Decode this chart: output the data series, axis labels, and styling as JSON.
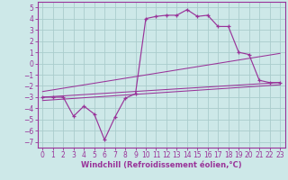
{
  "xlabel": "Windchill (Refroidissement éolien,°C)",
  "bg_color": "#cde8e8",
  "grid_color": "#aacccc",
  "line_color": "#993399",
  "xlim": [
    -0.5,
    23.5
  ],
  "ylim": [
    -7.5,
    5.5
  ],
  "xticks": [
    0,
    1,
    2,
    3,
    4,
    5,
    6,
    7,
    8,
    9,
    10,
    11,
    12,
    13,
    14,
    15,
    16,
    17,
    18,
    19,
    20,
    21,
    22,
    23
  ],
  "yticks": [
    -7,
    -6,
    -5,
    -4,
    -3,
    -2,
    -1,
    0,
    1,
    2,
    3,
    4,
    5
  ],
  "main_data_x": [
    0,
    1,
    2,
    3,
    4,
    5,
    6,
    7,
    8,
    9,
    10,
    11,
    12,
    13,
    14,
    15,
    16,
    17,
    18,
    19,
    20,
    21,
    22,
    23
  ],
  "main_data_y": [
    -3.0,
    -3.0,
    -3.0,
    -4.7,
    -3.8,
    -4.5,
    -6.8,
    -4.8,
    -3.1,
    -2.7,
    4.0,
    4.2,
    4.3,
    4.3,
    4.8,
    4.2,
    4.3,
    3.3,
    3.3,
    1.0,
    0.8,
    -1.5,
    -1.7,
    -1.7
  ],
  "trend1_x": [
    0,
    23
  ],
  "trend1_y": [
    -3.0,
    -1.7
  ],
  "trend2_x": [
    0,
    23
  ],
  "trend2_y": [
    -2.5,
    0.9
  ],
  "trend3_x": [
    0,
    23
  ],
  "trend3_y": [
    -3.3,
    -1.9
  ],
  "tick_fontsize": 5.5,
  "xlabel_fontsize": 6.0
}
